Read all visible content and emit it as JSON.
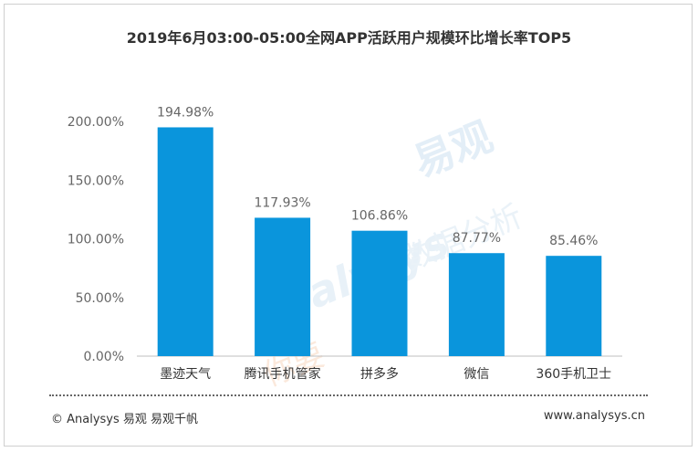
{
  "footer": {
    "copyright": "© Analysys 易观 易观千帆",
    "url": "www.analysys.cn"
  },
  "colors": {
    "bar": "#0a95dc",
    "axis": "#bfbfbf"
  },
  "chart_data": {
    "type": "bar",
    "title": "2019年6月03:00-05:00全网APP活跃用户规模环比增长率TOP5",
    "categories": [
      "墨迹天气",
      "腾讯手机管家",
      "拼多多",
      "微信",
      "360手机卫士"
    ],
    "values": [
      194.98,
      117.93,
      106.86,
      87.77,
      85.46
    ],
    "value_labels": [
      "194.98%",
      "117.93%",
      "106.86%",
      "87.77%",
      "85.46%"
    ],
    "y_ticks": [
      0,
      50,
      100,
      150,
      200
    ],
    "y_tick_labels": [
      "0.00%",
      "50.00%",
      "100.00%",
      "150.00%",
      "200.00%"
    ],
    "ylim": [
      0,
      200
    ],
    "grid": false,
    "legend": "none"
  }
}
